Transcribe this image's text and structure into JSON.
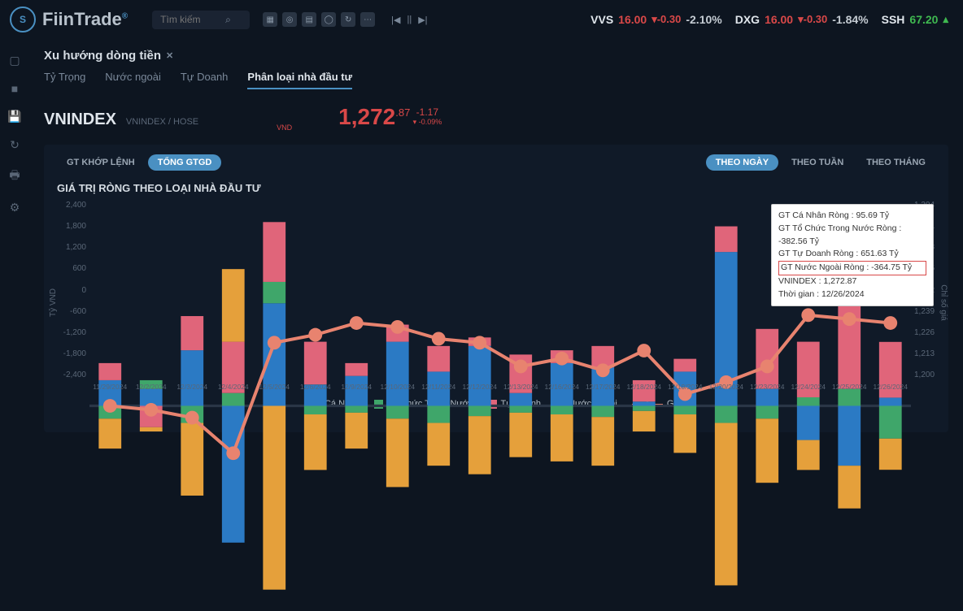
{
  "brand": {
    "name": "FiinTrade",
    "reg": "®"
  },
  "search": {
    "placeholder": "Tìm kiếm"
  },
  "ticker": [
    {
      "sym": "VVS",
      "price": "16.00",
      "chg": "-0.30",
      "pct": "-2.10%",
      "dir": "down"
    },
    {
      "sym": "DXG",
      "price": "16.00",
      "chg": "-0.30",
      "pct": "-1.84%",
      "dir": "down"
    },
    {
      "sym": "SSH",
      "price": "67.20",
      "chg": "",
      "pct": "",
      "dir": "up"
    }
  ],
  "page": {
    "title": "Xu hướng dòng tiền"
  },
  "subtabs": [
    "Tỷ Trọng",
    "Nước ngoài",
    "Tự Doanh",
    "Phân loại nhà đầu tư"
  ],
  "subtab_active": 3,
  "index": {
    "name": "VNINDEX",
    "sub": "VNINDEX / HOSE",
    "price_int": "1,272",
    "price_dec": ".87",
    "unit": "VND",
    "chg": "-1.17",
    "pct": "-0.09%",
    "arrow": "▾"
  },
  "left_toggles": [
    "GT KHỚP LỆNH",
    "TỔNG GTGD"
  ],
  "left_toggle_active": 1,
  "right_toggles": [
    "THEO NGÀY",
    "THEO TUẦN",
    "THEO THÁNG"
  ],
  "right_toggle_active": 0,
  "chart": {
    "title": "GIÁ TRỊ RÒNG THEO LOẠI NHÀ ĐẦU TƯ",
    "y_left_label": "Tỷ VND",
    "y_right_label": "Chỉ số giá",
    "y_left": {
      "min": -2400,
      "max": 2400,
      "step": 600
    },
    "y_right": {
      "min": 1200,
      "max": 1304,
      "step": 13,
      "ticks": [
        "1,304",
        "1,291",
        "1,278",
        "1,265",
        "1,252",
        "1,239",
        "1,226",
        "1,213",
        "1,200"
      ]
    },
    "colors": {
      "ca_nhan": "#2b7ac4",
      "to_chuc": "#3fa66a",
      "tu_doanh": "#e0657a",
      "nuoc_ngoai": "#e5a03b",
      "gia": "#e8836f",
      "grid": "#1a2636",
      "bg": "#101a28"
    },
    "categories": [
      "11/29/2024",
      "12/2/2024",
      "12/3/2024",
      "12/4/2024",
      "12/5/2024",
      "12/6/2024",
      "12/9/2024",
      "12/10/2024",
      "12/11/2024",
      "12/12/2024",
      "12/13/2024",
      "12/16/2024",
      "12/17/2024",
      "12/18/2024",
      "12/19/2024",
      "12/20/2024",
      "12/23/2024",
      "12/24/2024",
      "12/25/2024",
      "12/26/2024"
    ],
    "series": {
      "ca_nhan": [
        300,
        200,
        650,
        -1600,
        1200,
        250,
        350,
        750,
        400,
        700,
        150,
        500,
        450,
        50,
        400,
        1800,
        200,
        -400,
        -700,
        96
      ],
      "to_chuc": [
        -150,
        100,
        -200,
        150,
        250,
        -100,
        -80,
        -150,
        -200,
        -120,
        -80,
        -100,
        -130,
        -60,
        -100,
        -200,
        -150,
        100,
        200,
        -383
      ],
      "tu_doanh": [
        200,
        -250,
        400,
        600,
        700,
        500,
        150,
        200,
        300,
        100,
        450,
        150,
        250,
        250,
        150,
        300,
        700,
        650,
        1000,
        652
      ],
      "nuoc_ngoai": [
        -350,
        -50,
        -850,
        850,
        -2150,
        -650,
        -420,
        -800,
        -500,
        -680,
        -520,
        -550,
        -570,
        -240,
        -450,
        -1900,
        -750,
        -350,
        -500,
        -365
      ]
    },
    "gia": [
      1252,
      1251,
      1249,
      1240,
      1268,
      1270,
      1273,
      1272,
      1269,
      1268,
      1262,
      1264,
      1261,
      1266,
      1255,
      1258,
      1262,
      1275,
      1274,
      1273
    ],
    "legend": [
      "Cá Nhân",
      "Tổ Chức Trong Nước",
      "Tự Doanh",
      "Nước Ngoài",
      "Giá"
    ]
  },
  "tooltip": {
    "rows": [
      "GT Cá Nhân Ròng  : 95.69 Tỷ",
      "GT Tổ Chức Trong Nước Ròng : -382.56 Tỷ",
      "GT Tự Doanh Ròng : 651.63 Tỷ",
      "GT Nước Ngoài Ròng : -364.75 Tỷ",
      "VNINDEX : 1,272.87",
      "Thời gian : 12/26/2024"
    ],
    "highlight_row": 3
  }
}
